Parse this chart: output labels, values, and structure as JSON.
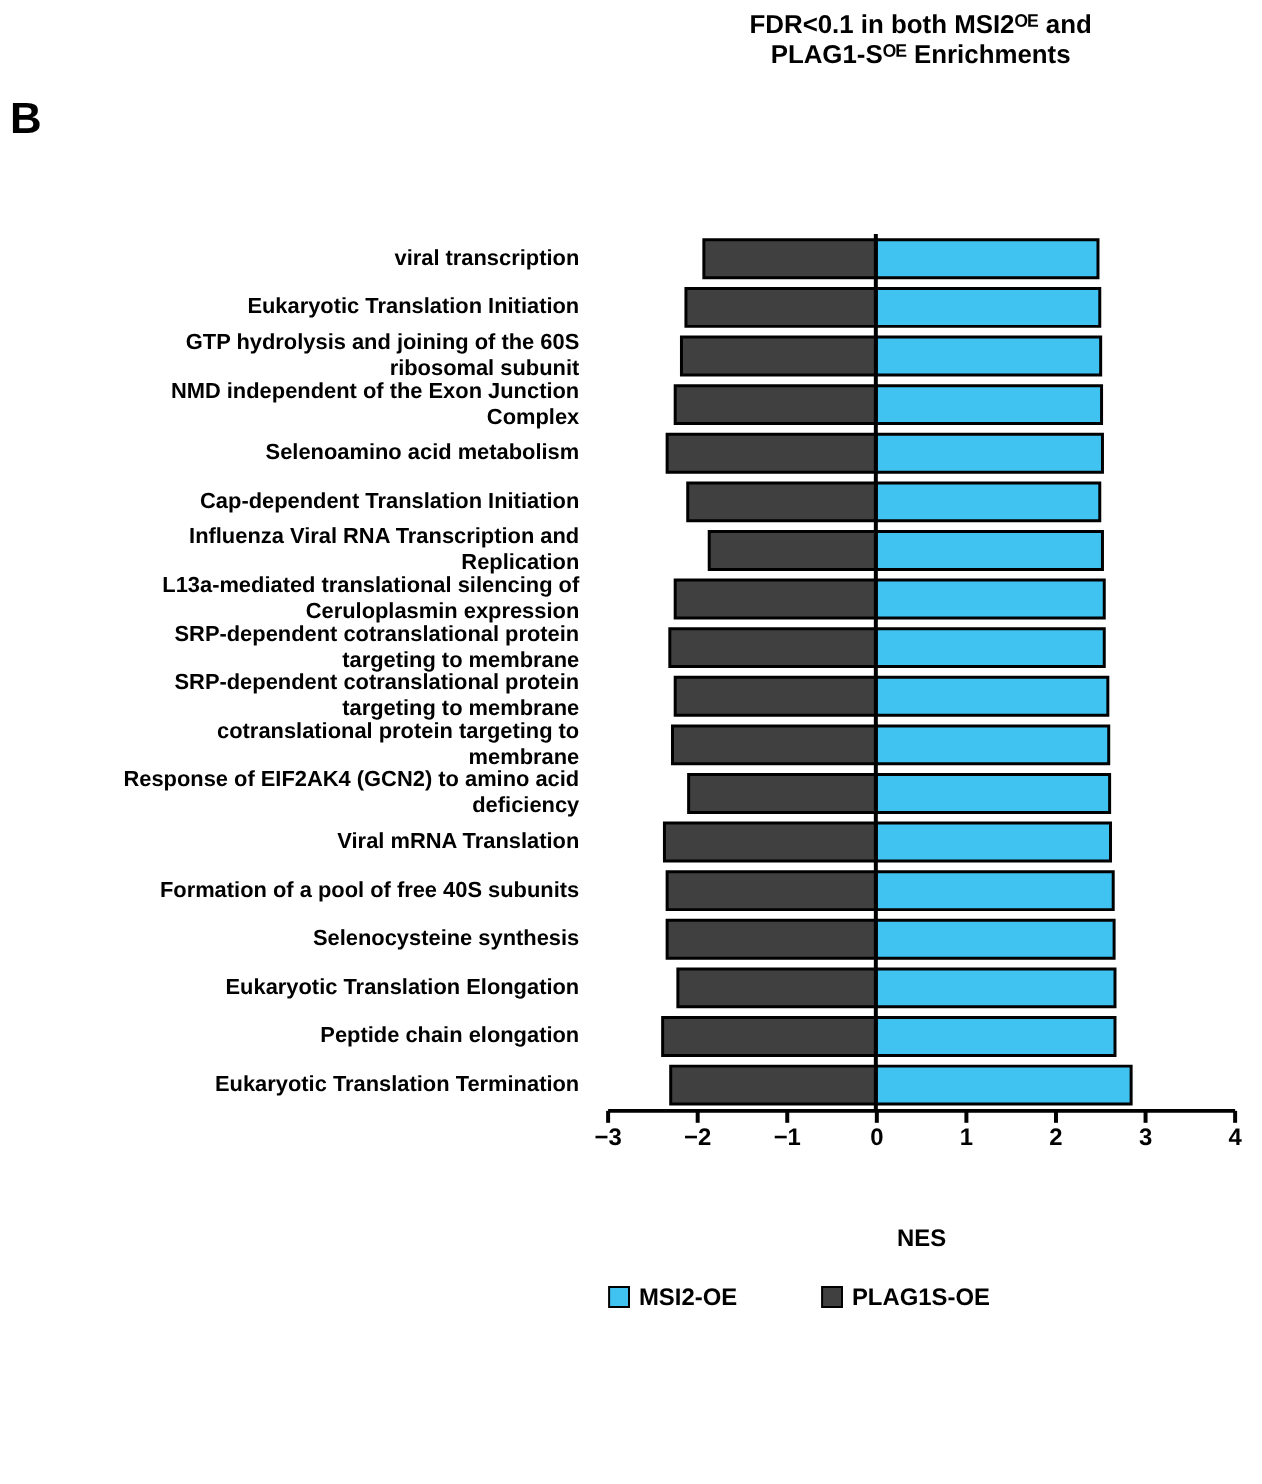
{
  "chart_data": {
    "type": "bar",
    "orientation": "horizontal",
    "title": [
      "FDR<0.1 in both MSI2ᴼᴱ and",
      "PLAG1-Sᴼᴱ Enrichments"
    ],
    "xlabel": "NES",
    "categories": [
      "viral transcription",
      "Eukaryotic Translation Initiation",
      "GTP hydrolysis and joining of the 60S ribosomal subunit",
      "NMD independent of the Exon Junction Complex",
      "Selenoamino acid metabolism",
      "Cap-dependent Translation Initiation",
      "Influenza Viral RNA Transcription and Replication",
      "L13a-mediated translational silencing of Ceruloplasmin expression",
      "SRP-dependent cotranslational protein targeting to membrane",
      "SRP-dependent cotranslational protein targeting to membrane",
      "cotranslational protein targeting to membrane",
      "Response of EIF2AK4 (GCN2) to amino acid deficiency",
      "Viral mRNA Translation",
      "Formation of a pool of free 40S subunits",
      "Selenocysteine synthesis",
      "Eukaryotic Translation Elongation",
      "Peptide chain elongation",
      "Eukaryotic Translation Termination"
    ],
    "series": [
      {
        "name": "MSI2-OE",
        "color": "#41c3f2",
        "values": [
          2.48,
          2.5,
          2.51,
          2.52,
          2.53,
          2.5,
          2.53,
          2.55,
          2.55,
          2.59,
          2.6,
          2.61,
          2.62,
          2.65,
          2.66,
          2.67,
          2.67,
          2.85
        ]
      },
      {
        "name": "PLAG1S-OE",
        "color": "#404040",
        "values": [
          -1.92,
          -2.12,
          -2.17,
          -2.24,
          -2.33,
          -2.1,
          -1.86,
          -2.24,
          -2.3,
          -2.24,
          -2.27,
          -2.09,
          -2.36,
          -2.33,
          -2.33,
          -2.21,
          -2.38,
          -2.29
        ]
      }
    ],
    "xlim": [
      -3,
      4
    ],
    "xticks": [
      -3,
      -2,
      -1,
      0,
      1,
      2,
      3,
      4
    ],
    "stacked": true,
    "grid": false,
    "legend": "bottom",
    "ref_lines": [
      {
        "axis": "x",
        "value": 0,
        "color": "#000000"
      }
    ],
    "annotations": [
      "B"
    ]
  }
}
